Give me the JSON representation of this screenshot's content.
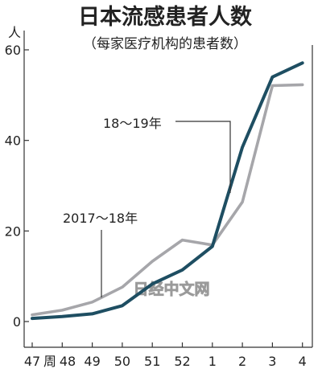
{
  "chart_data": {
    "type": "line",
    "title": "日本流感患者人数",
    "subtitle": "（每家医疗机构的患者数）",
    "ylabel": "人",
    "xlabel": "",
    "categories": [
      "47周",
      "48",
      "49",
      "50",
      "51",
      "52",
      "1",
      "2",
      "3",
      "4"
    ],
    "x_tick_labels": [
      "47",
      "周",
      "48",
      "49",
      "50",
      "51",
      "52",
      "1",
      "2",
      "3",
      "4"
    ],
    "ylim": [
      0,
      60
    ],
    "y_ticks": [
      "0",
      "20",
      "40",
      "60"
    ],
    "grid": false,
    "series": [
      {
        "name": "18～19年",
        "color": "#1e4e62",
        "values": [
          0.7,
          1.1,
          1.7,
          3.5,
          8.3,
          11.4,
          16.6,
          38.5,
          54.0,
          57.1
        ]
      },
      {
        "name": "2017～18年",
        "color": "#a6a6aa",
        "values": [
          1.5,
          2.5,
          4.3,
          7.6,
          13.3,
          18.0,
          16.9,
          26.4,
          52.1,
          52.3
        ]
      }
    ],
    "annotations": [
      "18～19年",
      "2017～18年"
    ]
  },
  "watermark": "日经中文网"
}
